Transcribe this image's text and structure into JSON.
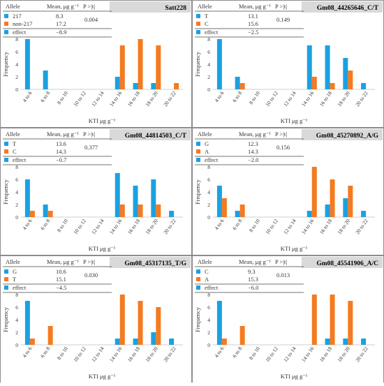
{
  "figure": {
    "colors": {
      "series1": "#1ba1e2",
      "series2": "#f47b20",
      "title_box": "#d9d9d9",
      "border": "#8c8c8c"
    }
  },
  "chart_data": [
    {
      "type": "bar",
      "title": "Satt228",
      "xlabel": "KTI μg  g⁻¹",
      "ylabel": "Frequency",
      "ylim": [
        0,
        8
      ],
      "yticks": [
        0,
        2,
        4,
        6,
        8
      ],
      "categories": [
        "4 to 6",
        "6 to 8",
        "8 to 10",
        "10 to 12",
        "12 to 14",
        "14 to 16",
        "16 to 18",
        "18 to 20",
        "20 to 22"
      ],
      "series": [
        {
          "name": "217",
          "values": [
            8,
            3,
            0,
            0,
            0,
            2,
            1,
            1,
            0
          ]
        },
        {
          "name": "non-217",
          "values": [
            0,
            0,
            0,
            0,
            0,
            7,
            8,
            7,
            1
          ]
        }
      ],
      "legend_header": {
        "allele": "Allele",
        "mean": "Mean, μg g⁻¹",
        "p": "P >|t|"
      },
      "legend_rows": [
        {
          "label": "217",
          "mean": "8.3"
        },
        {
          "label": "non-217",
          "mean": "17.2"
        },
        {
          "label": "effect",
          "mean": "−8.9"
        }
      ],
      "p_value": "0.004"
    },
    {
      "type": "bar",
      "title": "Gm08_44265646_C/T",
      "xlabel": "KTI μg  g⁻¹",
      "ylabel": "Frequency",
      "ylim": [
        0,
        8
      ],
      "yticks": [
        0,
        2,
        4,
        6,
        8
      ],
      "categories": [
        "4 to 6",
        "6 to 8",
        "8 to 10",
        "10 to 12",
        "12 to 14",
        "14 to 16",
        "16 to 18",
        "18 to 20",
        "20 to 22"
      ],
      "series": [
        {
          "name": "T",
          "values": [
            8,
            2,
            0,
            0,
            0,
            7,
            7,
            5,
            1
          ]
        },
        {
          "name": "C",
          "values": [
            0,
            1,
            0,
            0,
            0,
            2,
            1,
            3,
            0
          ]
        }
      ],
      "legend_header": {
        "allele": "Allele",
        "mean": "Mean, μg g⁻¹",
        "p": "P >|t|"
      },
      "legend_rows": [
        {
          "label": "T",
          "mean": "13.1"
        },
        {
          "label": "C",
          "mean": "15.6"
        },
        {
          "label": "effect",
          "mean": "−2.5"
        }
      ],
      "p_value": "0.149"
    },
    {
      "type": "bar",
      "title": "Gm08_44814503_C/T",
      "xlabel": "KTI μg  g⁻¹",
      "ylabel": "Frequency",
      "ylim": [
        0,
        8
      ],
      "yticks": [
        0,
        2,
        4,
        6,
        8
      ],
      "categories": [
        "4 to 6",
        "6 to 8",
        "8 to 10",
        "10 to 12",
        "12 to 14",
        "14 to 16",
        "16 to 18",
        "18 to 20",
        "20 to 22"
      ],
      "series": [
        {
          "name": "T",
          "values": [
            6,
            2,
            0,
            0,
            0,
            7,
            5,
            6,
            1
          ]
        },
        {
          "name": "C",
          "values": [
            1,
            1,
            0,
            0,
            0,
            2,
            2,
            2,
            0
          ]
        }
      ],
      "legend_header": {
        "allele": "Allele",
        "mean": "Mean, μg g⁻¹",
        "p": "P >|t|"
      },
      "legend_rows": [
        {
          "label": "T",
          "mean": "13.6"
        },
        {
          "label": "C",
          "mean": "14.3"
        },
        {
          "label": "effect",
          "mean": "−0.7"
        }
      ],
      "p_value": "0.377"
    },
    {
      "type": "bar",
      "title": "Gm08_45270892_A/G",
      "xlabel": "KTI μg  g⁻¹",
      "ylabel": "Frequency",
      "ylim": [
        0,
        8
      ],
      "yticks": [
        0,
        2,
        4,
        6,
        8
      ],
      "categories": [
        "4 to 6",
        "6 to 8",
        "8 to 10",
        "10 to 12",
        "12 to 14",
        "14 to 16",
        "16 to 18",
        "18 to 20",
        "20 to 22"
      ],
      "series": [
        {
          "name": "G",
          "values": [
            5,
            1,
            0,
            0,
            0,
            1,
            2,
            3,
            1
          ]
        },
        {
          "name": "A",
          "values": [
            3,
            2,
            0,
            0,
            0,
            8,
            6,
            5,
            0
          ]
        }
      ],
      "legend_header": {
        "allele": "Allele",
        "mean": "Mean, μg g⁻¹",
        "p": "P >|t|"
      },
      "legend_rows": [
        {
          "label": "G",
          "mean": "12.3"
        },
        {
          "label": "A",
          "mean": "14.3"
        },
        {
          "label": "effect",
          "mean": "−2.0"
        }
      ],
      "p_value": "0.156"
    },
    {
      "type": "bar",
      "title": "Gm08_45317135_T/G",
      "xlabel": "KTI μg  g⁻¹",
      "ylabel": "Frequency",
      "ylim": [
        0,
        8
      ],
      "yticks": [
        0,
        2,
        4,
        6,
        8
      ],
      "categories": [
        "4 to 6",
        "6 to 8",
        "8 to 10",
        "10 to 12",
        "12 to 14",
        "14 to 16",
        "16 to 18",
        "18 to 20",
        "20 to 22"
      ],
      "series": [
        {
          "name": "G",
          "values": [
            7,
            0,
            0,
            0,
            0,
            1,
            1,
            2,
            1
          ]
        },
        {
          "name": "T",
          "values": [
            1,
            3,
            0,
            0,
            0,
            8,
            7,
            6,
            0
          ]
        }
      ],
      "legend_header": {
        "allele": "Allele",
        "mean": "Mean, μg g⁻¹",
        "p": "P >|t|"
      },
      "legend_rows": [
        {
          "label": "G",
          "mean": "10.6"
        },
        {
          "label": "T",
          "mean": "15.1"
        },
        {
          "label": "effect",
          "mean": "−4.5"
        }
      ],
      "p_value": "0.030"
    },
    {
      "type": "bar",
      "title": "Gm08_45541906_A/C",
      "xlabel": "KTI μg  g⁻¹",
      "ylabel": "Frequency",
      "ylim": [
        0,
        8
      ],
      "yticks": [
        0,
        2,
        4,
        6,
        8
      ],
      "categories": [
        "4 to 6",
        "6 to 8",
        "8 to 10",
        "10 to 12",
        "12 to 14",
        "14 to 16",
        "16 to 18",
        "18 to 20",
        "20 to 22"
      ],
      "series": [
        {
          "name": "C",
          "values": [
            7,
            0,
            0,
            0,
            0,
            0,
            1,
            1,
            1
          ]
        },
        {
          "name": "A",
          "values": [
            1,
            3,
            0,
            0,
            0,
            8,
            8,
            7,
            0
          ]
        }
      ],
      "legend_header": {
        "allele": "Allele",
        "mean": "Mean, μg g⁻¹",
        "p": "P >|t|"
      },
      "legend_rows": [
        {
          "label": "C",
          "mean": "9.3"
        },
        {
          "label": "A",
          "mean": "15.3"
        },
        {
          "label": "effect",
          "mean": "−6.0"
        }
      ],
      "p_value": "0.013"
    }
  ]
}
